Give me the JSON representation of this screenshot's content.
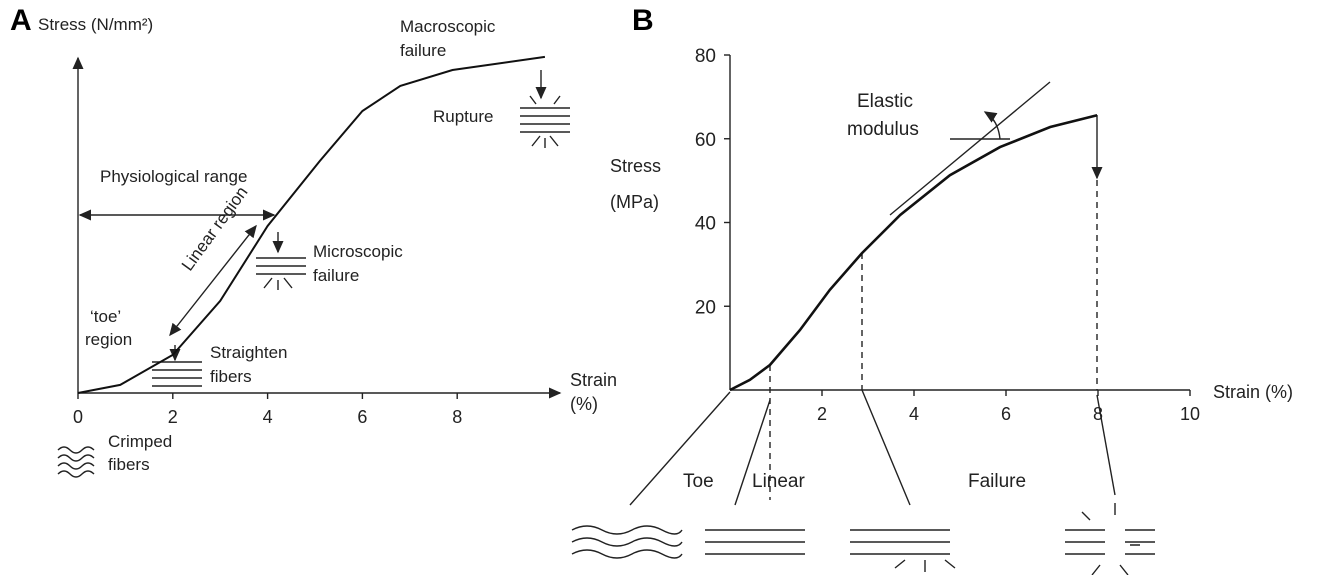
{
  "chart_data": [
    {
      "type": "line",
      "panel": "A",
      "ylabel": "Stress (N/mm²)",
      "xlabel": [
        "Strain",
        "(%)"
      ],
      "x": [
        0,
        0.89,
        2,
        3,
        4,
        5.1,
        6,
        6.8,
        7.9,
        9.85
      ],
      "values": [
        0,
        2.3,
        10.8,
        26.1,
        47.3,
        65.7,
        79.9,
        87,
        91.5,
        95.2
      ],
      "color": "#111111",
      "xlim": [
        0,
        10
      ],
      "ylim": [
        0,
        100
      ],
      "xticks": [
        0,
        2,
        4,
        6,
        8
      ],
      "annotations": [
        {
          "lines": [
            "Macroscopic",
            "failure"
          ]
        },
        {
          "lines": [
            "Rupture"
          ]
        },
        {
          "lines": [
            "Physiological range"
          ]
        },
        {
          "lines": [
            "Linear region"
          ]
        },
        {
          "lines": [
            "Microscopic",
            "failure"
          ]
        },
        {
          "lines": [
            "‘toe’",
            "region"
          ]
        },
        {
          "lines": [
            "Straighten",
            "fibers"
          ]
        },
        {
          "lines": [
            "Crimped",
            "fibers"
          ]
        }
      ]
    },
    {
      "type": "line",
      "panel": "B",
      "ylabel": [
        "Stress",
        "(MPa)"
      ],
      "xlabel": [
        "Strain (%)"
      ],
      "x": [
        0,
        0.43,
        0.87,
        1.52,
        2.17,
        2.87,
        3.7,
        4.78,
        5.87,
        6.96,
        7.98
      ],
      "values": [
        0,
        2.4,
        6,
        14.3,
        23.9,
        32.7,
        41.8,
        51.3,
        58,
        62.8,
        65.6
      ],
      "color": "#111111",
      "xlim": [
        0,
        10
      ],
      "ylim": [
        0,
        80
      ],
      "xticks": [
        2,
        4,
        6,
        8,
        10
      ],
      "yticks": [
        20,
        40,
        60,
        80
      ],
      "annotations": [
        {
          "lines": [
            "Elastic",
            "modulus"
          ]
        },
        {
          "lines": [
            "Toe"
          ]
        },
        {
          "lines": [
            "Linear"
          ]
        },
        {
          "lines": [
            "Failure"
          ]
        }
      ]
    }
  ]
}
